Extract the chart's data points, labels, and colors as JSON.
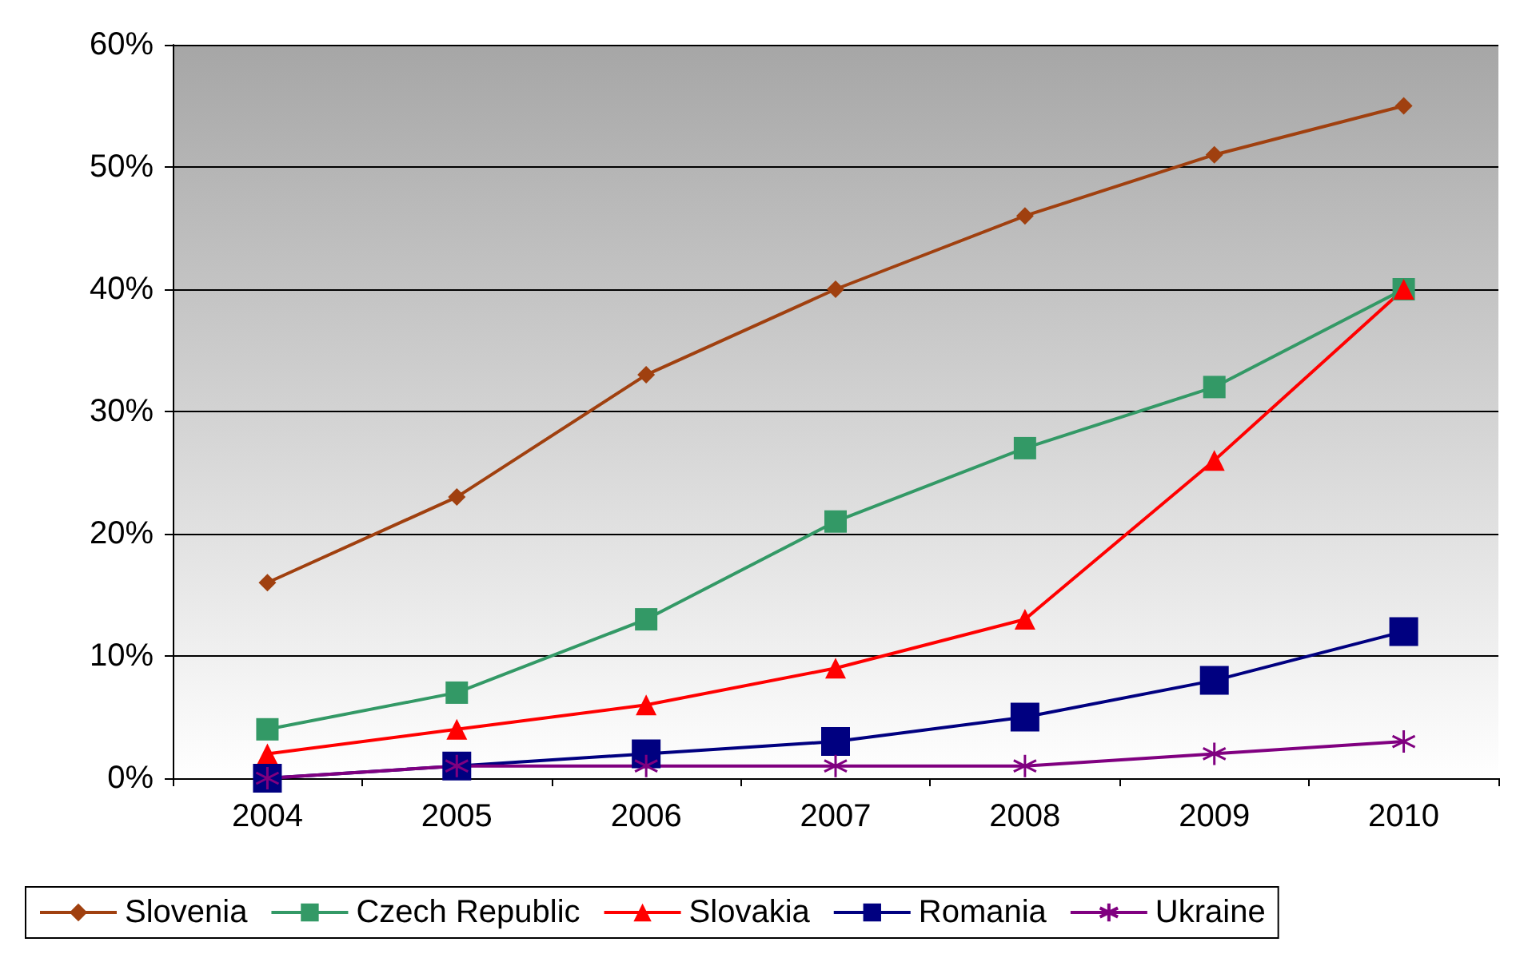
{
  "chart_data": {
    "type": "line",
    "categories": [
      "2004",
      "2005",
      "2006",
      "2007",
      "2008",
      "2009",
      "2010"
    ],
    "series": [
      {
        "name": "Slovenia",
        "color": "#a0400f",
        "marker": "diamond",
        "values": [
          16,
          23,
          33,
          40,
          46,
          51,
          55
        ]
      },
      {
        "name": "Czech Republic",
        "color": "#339966",
        "marker": "square",
        "values": [
          4,
          7,
          13,
          21,
          27,
          32,
          40
        ]
      },
      {
        "name": "Slovakia",
        "color": "#ff0000",
        "marker": "triangle",
        "values": [
          2,
          4,
          6,
          9,
          13,
          26,
          40
        ]
      },
      {
        "name": "Romania",
        "color": "#000080",
        "marker": "square",
        "values": [
          0,
          1,
          2,
          3,
          5,
          8,
          12
        ]
      },
      {
        "name": "Ukraine",
        "color": "#800080",
        "marker": "cross",
        "values": [
          0,
          1,
          1,
          1,
          1,
          2,
          3
        ]
      }
    ],
    "ylim": [
      0,
      60
    ],
    "yticks": [
      {
        "value": 0,
        "label": "0%"
      },
      {
        "value": 10,
        "label": "10%"
      },
      {
        "value": 20,
        "label": "20%"
      },
      {
        "value": 30,
        "label": "30%"
      },
      {
        "value": 40,
        "label": "40%"
      },
      {
        "value": 50,
        "label": "50%"
      },
      {
        "value": 60,
        "label": "60%"
      }
    ],
    "grid": "y",
    "legend": "bottom",
    "line_style": "solid"
  }
}
